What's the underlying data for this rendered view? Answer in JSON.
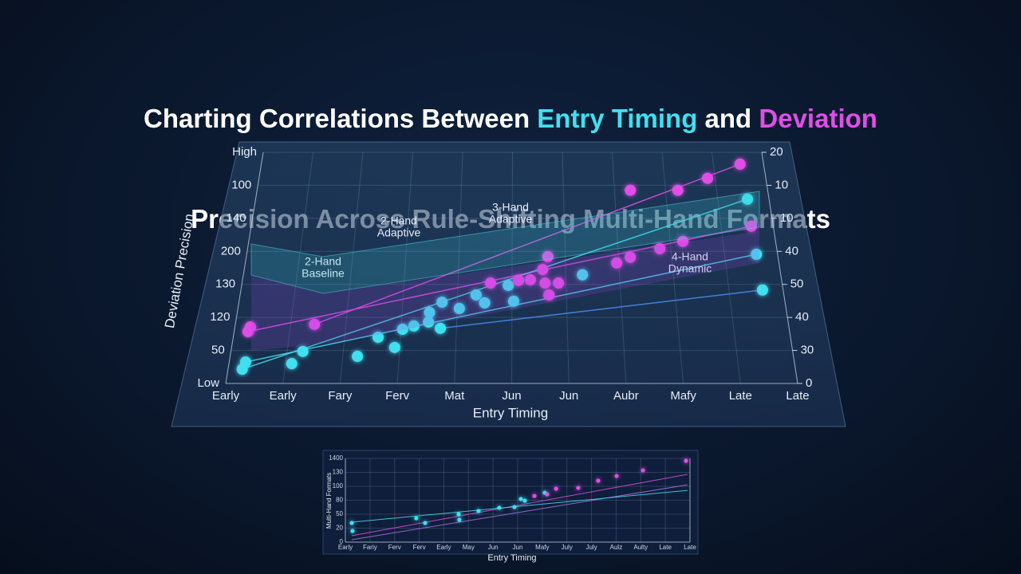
{
  "chart_data": [
    {
      "type": "scatter",
      "title": {
        "line1": [
          "Charting Correlations Between ",
          "Entry Timing",
          " and ",
          "Deviation"
        ],
        "line2": "Precision Across Rule-Shifting Multi-Hand Formats"
      },
      "title_colors": [
        "#ffffff",
        "#3fe0f0",
        "#ffffff",
        "#e24de8"
      ],
      "x_label": "Entry Timing",
      "y_label": "Deviation Precision",
      "xlim": [
        0,
        10
      ],
      "ylim": [
        0,
        7
      ],
      "y2lim": [
        0,
        7
      ],
      "xticks": [
        {
          "value": 0,
          "label": "Early"
        },
        {
          "value": 1,
          "label": "Early"
        },
        {
          "value": 2,
          "label": "Fary"
        },
        {
          "value": 3,
          "label": "Ferv"
        },
        {
          "value": 4,
          "label": "Mat"
        },
        {
          "value": 5,
          "label": "Jun"
        },
        {
          "value": 6,
          "label": "Jun"
        },
        {
          "value": 7,
          "label": "Aubr"
        },
        {
          "value": 8,
          "label": "Mafy"
        },
        {
          "value": 9,
          "label": "Late"
        },
        {
          "value": 10,
          "label": "Late"
        }
      ],
      "yticks": [
        {
          "value": 0,
          "label": "Low"
        },
        {
          "value": 1,
          "label": "50"
        },
        {
          "value": 2,
          "label": "120"
        },
        {
          "value": 3,
          "label": "130"
        },
        {
          "value": 4,
          "label": "200"
        },
        {
          "value": 5,
          "label": "140"
        },
        {
          "value": 6,
          "label": "100"
        },
        {
          "value": 7,
          "label": "High"
        }
      ],
      "y2ticks": [
        0,
        {
          "value": 1,
          "label": "30"
        },
        {
          "value": 2,
          "label": "40"
        },
        {
          "value": 3,
          "label": "50"
        },
        {
          "value": 4,
          "label": "40"
        },
        {
          "value": 5,
          "label": "10"
        },
        {
          "value": 6,
          "label": "10"
        },
        {
          "value": 7,
          "label": "20"
        }
      ],
      "grid": true,
      "annotations": [
        [
          "2-Hand",
          "Baseline"
        ],
        [
          "2-Hand",
          "Adaptive"
        ],
        [
          "3-Hand",
          "Adaptive"
        ],
        [
          "4-Hand",
          "Dynamic"
        ]
      ],
      "series": [
        {
          "color": "#3fe0f0",
          "x": [
            0.25,
            0.29,
            1.28,
            1.11,
            2.26,
            2.6,
            2.91,
            3.03,
            3.23,
            3.49,
            3.5,
            3.71,
            4.04,
            3.72,
            4.34,
            4.5,
            4.93,
            5.03,
            6.31,
            9.58,
            9.6,
            9.62
          ],
          "values": [
            0.43,
            0.65,
            0.97,
            0.6,
            0.82,
            1.4,
            1.09,
            1.64,
            1.74,
            1.86,
            2.15,
            1.67,
            2.27,
            2.46,
            2.68,
            2.44,
            2.97,
            2.49,
            3.29,
            5.58,
            3.91,
            2.83
          ]
        },
        {
          "color": "#e24de8",
          "x": [
            0.25,
            0.28,
            1.43,
            4.6,
            5.12,
            5.34,
            5.57,
            5.61,
            5.67,
            5.68,
            5.86,
            7.31,
            6.96,
            7.22,
            7.79,
            8.24,
            8.24,
            8.85,
            9.53,
            9.58
          ],
          "values": [
            1.57,
            1.71,
            1.79,
            3.04,
            3.12,
            3.14,
            3.45,
            3.04,
            3.84,
            2.68,
            3.04,
            5.85,
            3.65,
            3.82,
            4.08,
            4.3,
            5.85,
            6.21,
            6.64,
            4.76
          ]
        }
      ],
      "lines": [
        {
          "color": "#e24de8",
          "x": [
            0.25,
            9.58
          ],
          "values": [
            1.57,
            4.76
          ]
        },
        {
          "color": "#e24de8",
          "x": [
            1.43,
            9.53
          ],
          "values": [
            1.79,
            6.64
          ]
        },
        {
          "color": "#3fe0f0",
          "x": [
            0.25,
            9.58
          ],
          "values": [
            0.43,
            5.58
          ]
        },
        {
          "color": "#3fe0f0",
          "x": [
            0.29,
            9.6
          ],
          "values": [
            0.65,
            3.91
          ]
        },
        {
          "color": "#4a8ff0",
          "x": [
            3.71,
            9.62
          ],
          "values": [
            1.67,
            2.83
          ]
        }
      ]
    },
    {
      "type": "scatter",
      "x_label": "Entry Timing",
      "y_label": "Multi-Hand Formats",
      "xlim": [
        0,
        14
      ],
      "ylim": [
        0,
        6
      ],
      "xticks": [
        {
          "value": 0,
          "label": "Early"
        },
        {
          "value": 1,
          "label": "Fariy"
        },
        {
          "value": 2,
          "label": "Ferv"
        },
        {
          "value": 3,
          "label": "Ferv"
        },
        {
          "value": 4,
          "label": "Early"
        },
        {
          "value": 5,
          "label": "May"
        },
        {
          "value": 6,
          "label": "Jun"
        },
        {
          "value": 7,
          "label": "Jun"
        },
        {
          "value": 8,
          "label": "Mafy"
        },
        {
          "value": 9,
          "label": "July"
        },
        {
          "value": 10,
          "label": "July"
        },
        {
          "value": 11,
          "label": "Aulz"
        },
        {
          "value": 12,
          "label": "Aulty"
        },
        {
          "value": 13,
          "label": "Late"
        },
        {
          "value": 14,
          "label": "Late"
        }
      ],
      "yticks": [
        0,
        {
          "value": 1,
          "label": "20"
        },
        {
          "value": 2,
          "label": "50"
        },
        {
          "value": 3,
          "label": "80"
        },
        {
          "value": 4,
          "label": "100"
        },
        {
          "value": 5,
          "label": "130"
        },
        {
          "value": 6,
          "label": "1400"
        }
      ],
      "grid": true,
      "series": [
        {
          "color": "#3fe0f0",
          "x": [
            0.26,
            0.29,
            2.88,
            3.24,
            4.6,
            4.63,
            5.41,
            6.25,
            6.87,
            7.13,
            7.29,
            8.1
          ],
          "values": [
            1.37,
            0.8,
            1.71,
            1.37,
            2.0,
            1.6,
            2.23,
            2.46,
            2.51,
            3.09,
            2.97,
            3.54
          ]
        },
        {
          "color": "#e24de8",
          "x": [
            7.68,
            8.2,
            8.56,
            9.46,
            10.27,
            11.02,
            12.09,
            13.84
          ],
          "values": [
            3.31,
            3.43,
            3.83,
            3.89,
            4.4,
            4.74,
            5.14,
            5.83
          ]
        }
      ],
      "lines": [
        {
          "color": "#e24de8",
          "x": [
            0.26,
            13.9
          ],
          "values": [
            0.46,
            4.86
          ]
        },
        {
          "color": "#b070e8",
          "x": [
            0.26,
            13.9
          ],
          "values": [
            0.17,
            4.11
          ]
        },
        {
          "color": "#3fe0f0",
          "x": [
            0.26,
            13.9
          ],
          "values": [
            1.43,
            3.71
          ]
        }
      ]
    }
  ]
}
